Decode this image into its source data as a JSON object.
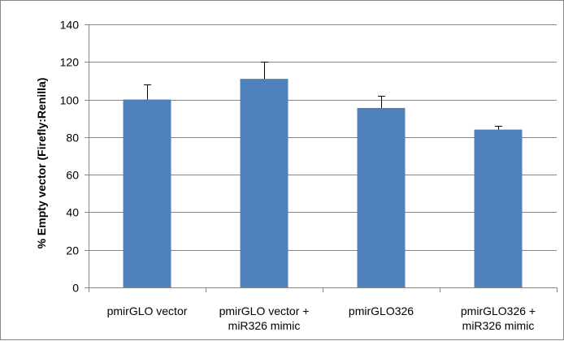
{
  "chart_data": {
    "type": "bar",
    "title": "",
    "xlabel": "",
    "ylabel": "% Empty vector (Firefly:Renilla)",
    "ylim": [
      0,
      140
    ],
    "yticks": [
      0,
      20,
      40,
      60,
      80,
      100,
      120,
      140
    ],
    "grid": true,
    "legend": "none",
    "categories": [
      [
        "pmirGLO vector"
      ],
      [
        "pmirGLO vector +",
        "miR326 mimic"
      ],
      [
        "pmirGLO326"
      ],
      [
        "pmirGLO326 +",
        "miR326 mimic"
      ]
    ],
    "values": [
      100,
      111,
      95.5,
      84
    ],
    "error_bars_upper": [
      8,
      9,
      6.5,
      2
    ],
    "colors": {
      "bar": "#4f81bd",
      "grid": "#868686",
      "axis": "#868686",
      "error_bar": "#000000"
    }
  }
}
